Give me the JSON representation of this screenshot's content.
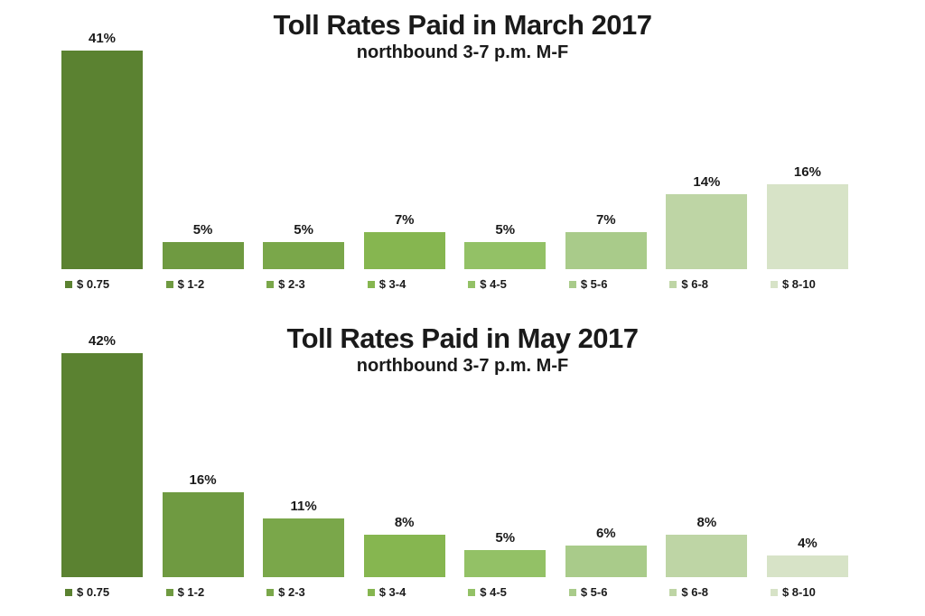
{
  "page": {
    "background": "#ffffff",
    "text_color": "#1a1a1a"
  },
  "chart_data": [
    {
      "type": "bar",
      "title": "Toll Rates Paid in March 2017",
      "subtitle": "northbound 3-7 p.m. M-F",
      "categories": [
        "$ 0.75",
        "$ 1-2",
        "$ 2-3",
        "$ 3-4",
        "$ 4-5",
        "$ 5-6",
        "$ 6-8",
        "$ 8-10"
      ],
      "values": [
        41,
        5,
        5,
        7,
        5,
        7,
        14,
        16
      ],
      "value_labels": [
        "41%",
        "5%",
        "5%",
        "7%",
        "5%",
        "7%",
        "14%",
        "16%"
      ],
      "unit": "%",
      "ylim": [
        0,
        45
      ],
      "grid": false,
      "axes_visible": false,
      "legend_position": "swatch-below-each-bar",
      "bar_colors": [
        "#5b8231",
        "#6f9a41",
        "#7aa74a",
        "#86b650",
        "#93c166",
        "#a9cb8a",
        "#bed5a5",
        "#d7e3c7"
      ]
    },
    {
      "type": "bar",
      "title": "Toll Rates Paid in May 2017",
      "subtitle": "northbound 3-7 p.m. M-F",
      "categories": [
        "$ 0.75",
        "$ 1-2",
        "$ 2-3",
        "$ 3-4",
        "$ 4-5",
        "$ 5-6",
        "$ 6-8",
        "$ 8-10"
      ],
      "values": [
        42,
        16,
        11,
        8,
        5,
        6,
        8,
        4
      ],
      "value_labels": [
        "42%",
        "16%",
        "11%",
        "8%",
        "5%",
        "6%",
        "8%",
        "4%"
      ],
      "unit": "%",
      "ylim": [
        0,
        45
      ],
      "grid": false,
      "axes_visible": false,
      "legend_position": "swatch-below-each-bar",
      "bar_colors": [
        "#5b8231",
        "#6f9a41",
        "#7aa74a",
        "#86b650",
        "#93c166",
        "#a9cb8a",
        "#bed5a5",
        "#d7e3c7"
      ]
    }
  ]
}
